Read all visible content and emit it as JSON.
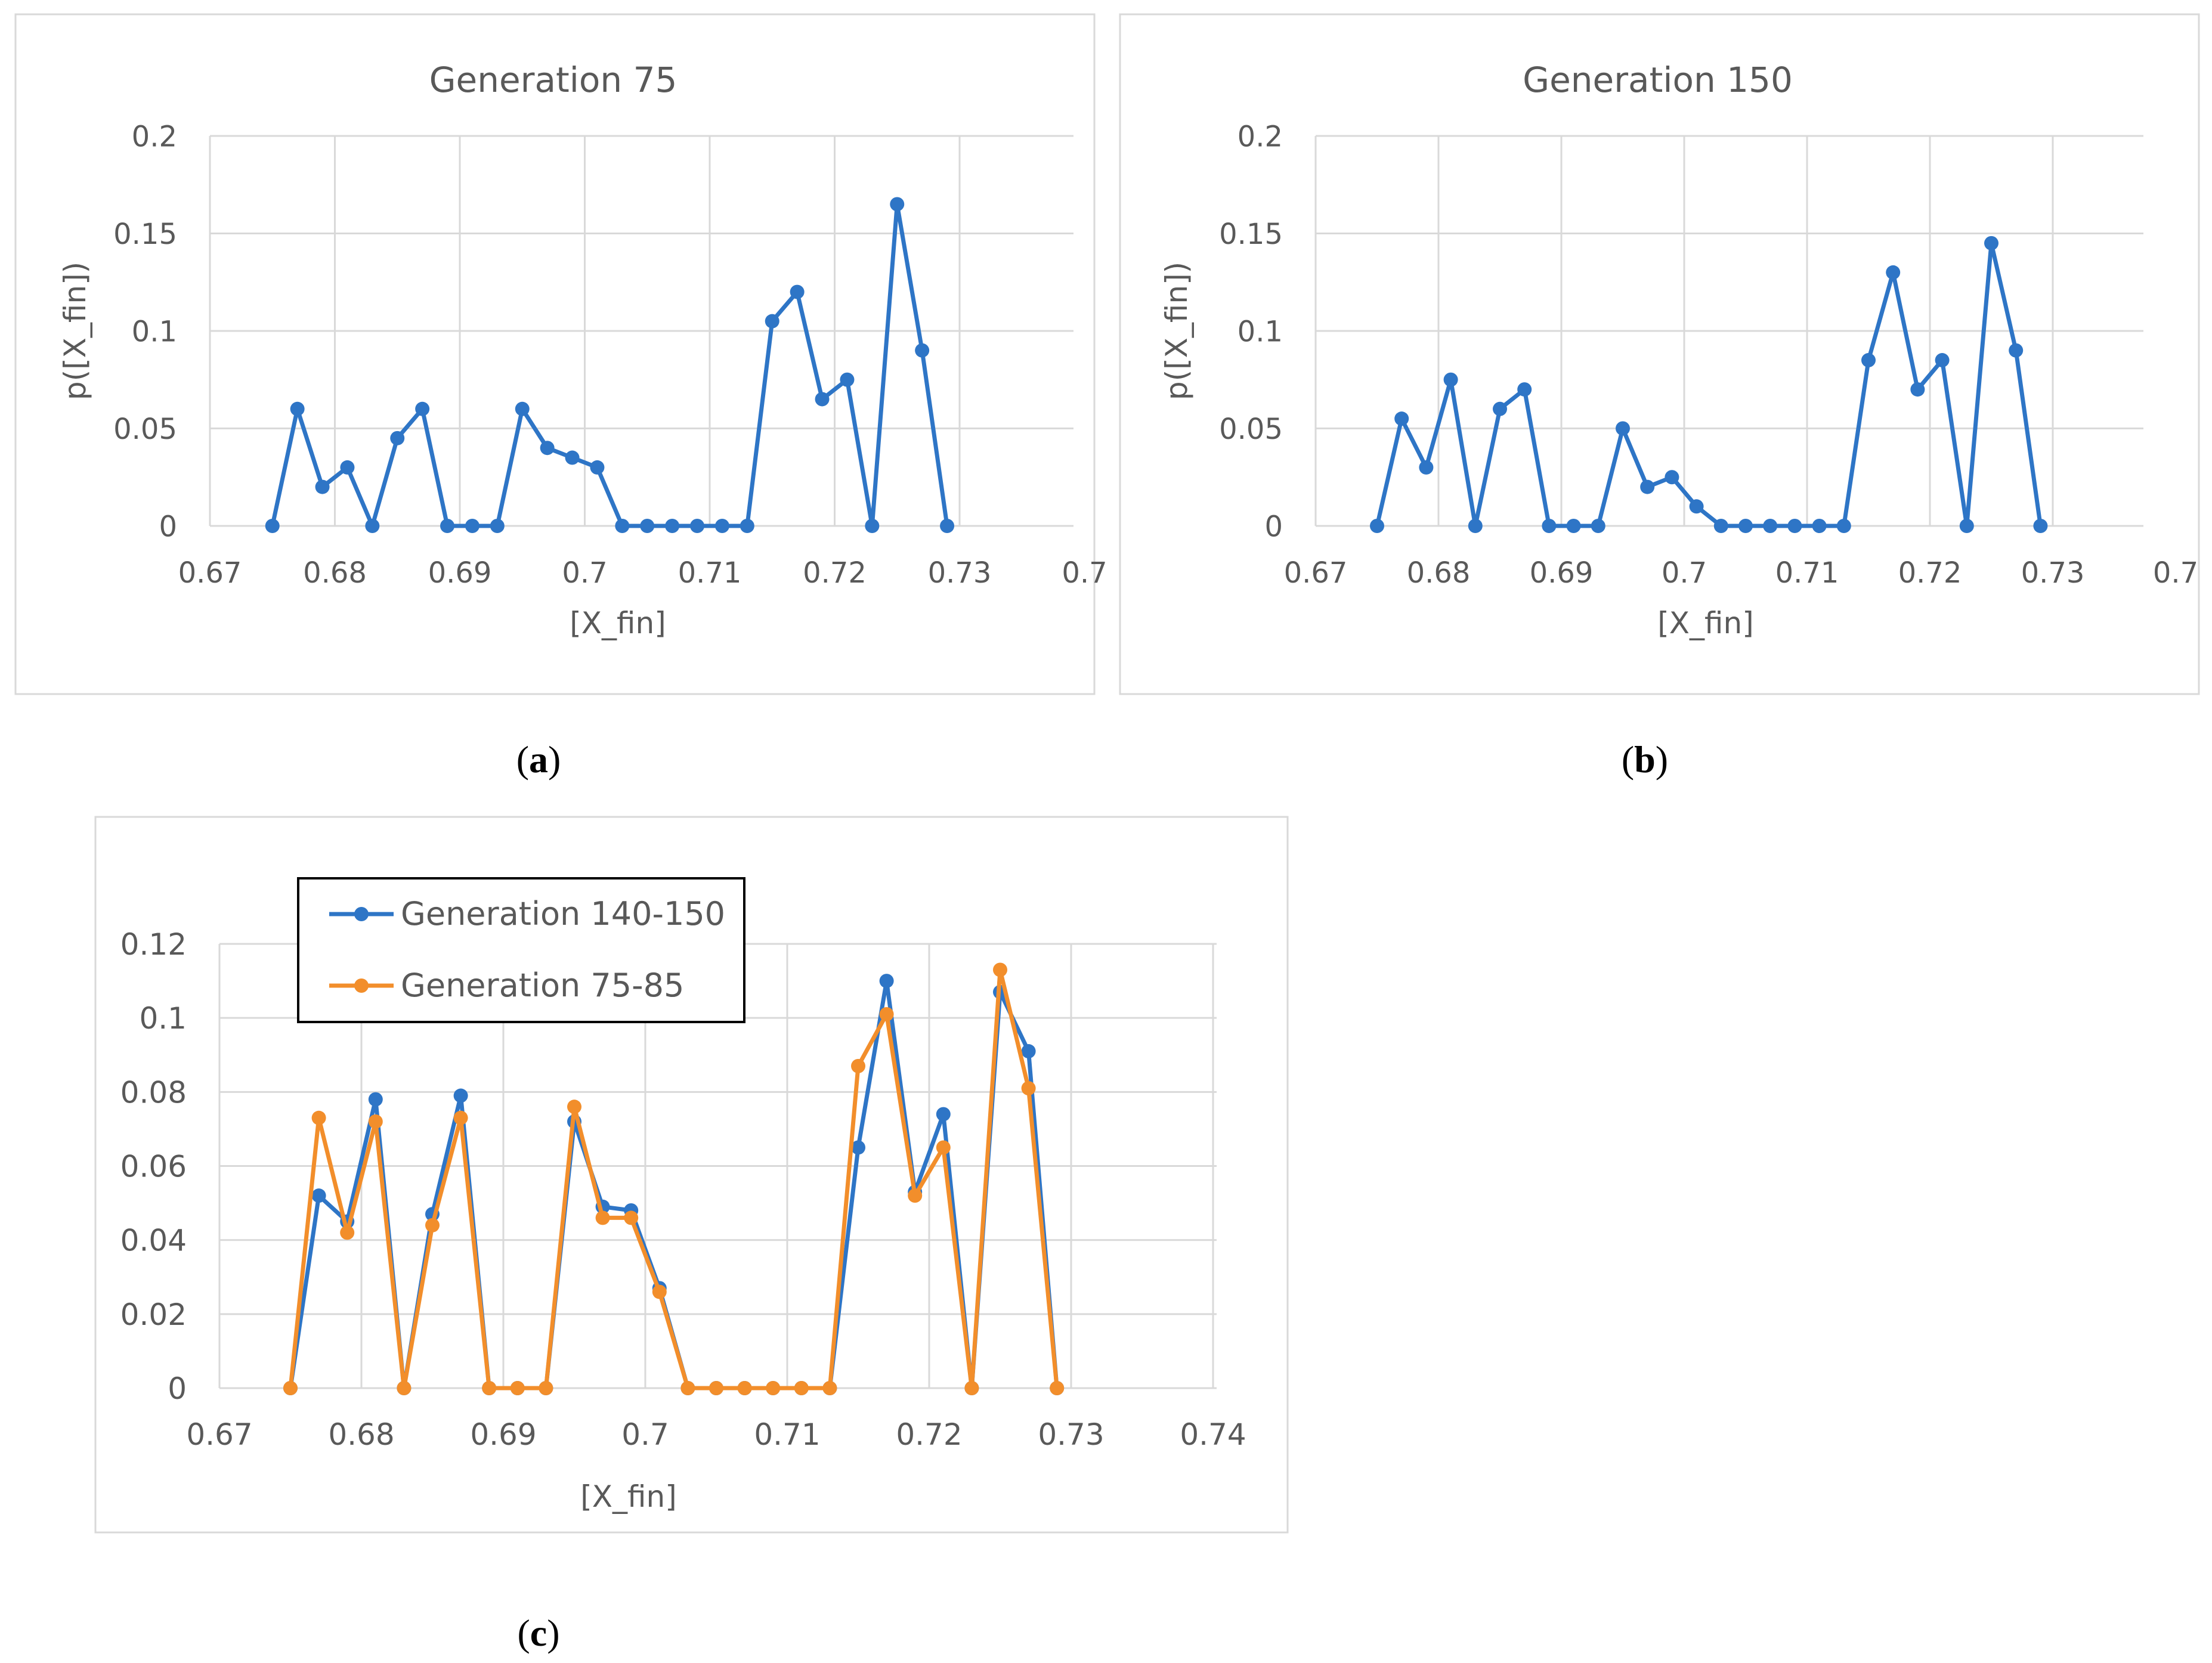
{
  "panels": [
    {
      "caption": "(a)",
      "caption_letter": "a",
      "chart_data": {
        "type": "line",
        "title": "Generation 75",
        "xlabel": "[X_fin]",
        "ylabel": "p([X_fin])",
        "xlim": [
          0.67,
          0.74
        ],
        "ylim": [
          0,
          0.2
        ],
        "x_ticks": [
          "0.67",
          "0.68",
          "0.69",
          "0.7",
          "0.71",
          "0.72",
          "0.73",
          "0.7"
        ],
        "y_ticks": [
          "0",
          "0.05",
          "0.1",
          "0.15",
          "0.2"
        ],
        "grid": true,
        "legend": null,
        "series": [
          {
            "color": "#2e75c6",
            "x": [
              0.675,
              0.677,
              0.679,
              0.681,
              0.683,
              0.685,
              0.687,
              0.689,
              0.691,
              0.693,
              0.695,
              0.697,
              0.699,
              0.701,
              0.703,
              0.705,
              0.707,
              0.709,
              0.711,
              0.713,
              0.715,
              0.717,
              0.719,
              0.721,
              0.723,
              0.725,
              0.727,
              0.729
            ],
            "y": [
              0,
              0.06,
              0.02,
              0.03,
              0,
              0.045,
              0.06,
              0,
              0,
              0,
              0.06,
              0.04,
              0.035,
              0.03,
              0,
              0,
              0,
              0,
              0,
              0,
              0.105,
              0.12,
              0.065,
              0.075,
              0,
              0.165,
              0.09,
              0
            ]
          }
        ]
      }
    },
    {
      "caption": "(b)",
      "caption_letter": "b",
      "chart_data": {
        "type": "line",
        "title": "Generation 150",
        "xlabel": "[X_fin]",
        "ylabel": "p([X_fin])",
        "xlim": [
          0.67,
          0.74
        ],
        "ylim": [
          0,
          0.2
        ],
        "x_ticks": [
          "0.67",
          "0.68",
          "0.69",
          "0.7",
          "0.71",
          "0.72",
          "0.73",
          "0.7"
        ],
        "y_ticks": [
          "0",
          "0.05",
          "0.1",
          "0.15",
          "0.2"
        ],
        "grid": true,
        "legend": null,
        "series": [
          {
            "color": "#2e75c6",
            "x": [
              0.675,
              0.677,
              0.679,
              0.681,
              0.683,
              0.685,
              0.687,
              0.689,
              0.691,
              0.693,
              0.695,
              0.697,
              0.699,
              0.701,
              0.703,
              0.705,
              0.707,
              0.709,
              0.711,
              0.713,
              0.715,
              0.717,
              0.719,
              0.721,
              0.723,
              0.725,
              0.727,
              0.729
            ],
            "y": [
              0,
              0.055,
              0.03,
              0.075,
              0,
              0.06,
              0.07,
              0,
              0,
              0,
              0.05,
              0.02,
              0.025,
              0.01,
              0,
              0,
              0,
              0,
              0,
              0,
              0.085,
              0.13,
              0.07,
              0.085,
              0,
              0.145,
              0.09,
              0
            ]
          }
        ]
      }
    },
    {
      "caption": "(c)",
      "caption_letter": "c",
      "chart_data": {
        "type": "line",
        "title": "",
        "xlabel": "[X_fin]",
        "ylabel": "",
        "xlim": [
          0.67,
          0.74
        ],
        "ylim": [
          0,
          0.12
        ],
        "x_ticks": [
          "0.67",
          "0.68",
          "0.69",
          "0.7",
          "0.71",
          "0.72",
          "0.73",
          "0.74"
        ],
        "y_ticks": [
          "0",
          "0.02",
          "0.04",
          "0.06",
          "0.08",
          "0.1",
          "0.12"
        ],
        "grid": true,
        "legend": "top-left",
        "series": [
          {
            "name": "Generation 140-150",
            "color": "#2e75c6",
            "x": [
              0.675,
              0.677,
              0.679,
              0.681,
              0.683,
              0.685,
              0.687,
              0.689,
              0.691,
              0.693,
              0.695,
              0.697,
              0.699,
              0.701,
              0.703,
              0.705,
              0.707,
              0.709,
              0.711,
              0.713,
              0.715,
              0.717,
              0.719,
              0.721,
              0.723,
              0.725,
              0.727,
              0.729
            ],
            "y": [
              0,
              0.052,
              0.045,
              0.078,
              0,
              0.047,
              0.079,
              0,
              0,
              0,
              0.072,
              0.049,
              0.048,
              0.027,
              0,
              0,
              0,
              0,
              0,
              0,
              0.065,
              0.11,
              0.053,
              0.074,
              0,
              0.107,
              0.091,
              0
            ]
          },
          {
            "name": "Generation 75-85",
            "color": "#f28e2b",
            "x": [
              0.675,
              0.677,
              0.679,
              0.681,
              0.683,
              0.685,
              0.687,
              0.689,
              0.691,
              0.693,
              0.695,
              0.697,
              0.699,
              0.701,
              0.703,
              0.705,
              0.707,
              0.709,
              0.711,
              0.713,
              0.715,
              0.717,
              0.719,
              0.721,
              0.723,
              0.725,
              0.727,
              0.729
            ],
            "y": [
              0,
              0.073,
              0.042,
              0.072,
              0,
              0.044,
              0.073,
              0,
              0,
              0,
              0.076,
              0.046,
              0.046,
              0.026,
              0,
              0,
              0,
              0,
              0,
              0,
              0.087,
              0.101,
              0.052,
              0.065,
              0,
              0.113,
              0.081,
              0
            ]
          }
        ]
      }
    }
  ]
}
